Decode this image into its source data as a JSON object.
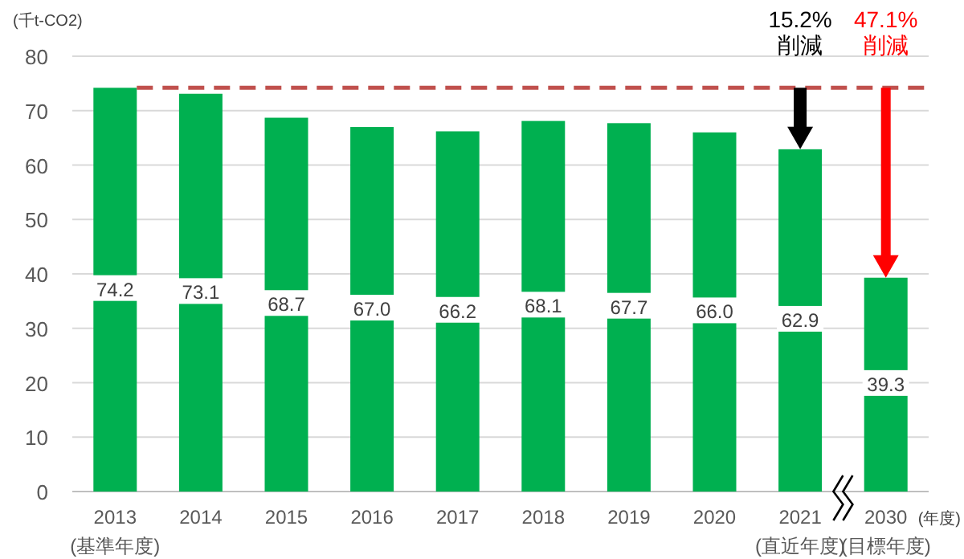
{
  "chart_data": {
    "type": "bar",
    "ylabel": "(千t-CO2)",
    "xlabel": "(年度)",
    "categories": [
      "2013\n(基準年度)",
      "2014",
      "2015",
      "2016",
      "2017",
      "2018",
      "2019",
      "2020",
      "2021\n(直近年度)",
      "2030\n(目標年度)"
    ],
    "values": [
      74.2,
      73.1,
      68.7,
      67.0,
      66.2,
      68.1,
      67.7,
      66.0,
      62.9,
      39.3
    ],
    "color": "#00b050",
    "value_labels": [
      "74.2",
      "73.1",
      "68.7",
      "67.0",
      "66.2",
      "68.1",
      "67.7",
      "66.0",
      "62.9",
      "39.3"
    ],
    "ylim": [
      0,
      80
    ],
    "yticks": [
      0,
      10,
      20,
      30,
      40,
      50,
      60,
      70,
      80
    ],
    "grid": "y",
    "ref_lines": [
      {
        "axis": "y",
        "value": 74.2,
        "color": "#c0504d",
        "line_style": "dashed"
      }
    ],
    "annotations": [
      "15.2%\n削減",
      "47.1%\n削減"
    ]
  }
}
